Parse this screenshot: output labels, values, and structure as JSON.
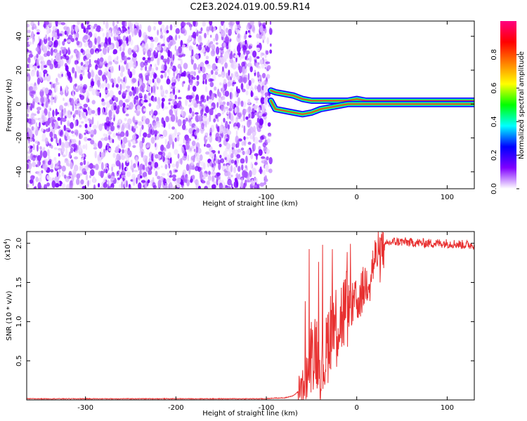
{
  "title": "C2E3.2024.019.00.59.R14",
  "chart_data": [
    {
      "type": "heatmap",
      "title": "C2E3.2024.019.00.59.R14",
      "xlabel": "Height of straight line (km)",
      "ylabel": "Frequency (Hz)",
      "xlim": [
        -365,
        130
      ],
      "ylim": [
        -50,
        49
      ],
      "x_ticks": [
        -300,
        -200,
        -100,
        0,
        100
      ],
      "y_ticks": [
        -40,
        -20,
        0,
        20,
        40
      ],
      "x_tick_labels": [
        "-300",
        "-200",
        "-100",
        "0",
        "100"
      ],
      "y_tick_labels": [
        "-40",
        "-20",
        "0",
        "20",
        "40"
      ],
      "noise_region_x": [
        -365,
        -95
      ],
      "ridge": {
        "x": [
          -95,
          -90,
          -80,
          -70,
          -60,
          -50,
          -40,
          -30,
          -20,
          -10,
          0,
          10,
          30,
          50,
          80,
          100,
          130
        ],
        "upper_hz": [
          8,
          7,
          6,
          5,
          3,
          2,
          2,
          2,
          2,
          2,
          3,
          2,
          2,
          2,
          2,
          2,
          2
        ],
        "lower_hz": [
          2,
          -3,
          -4,
          -5,
          -6,
          -5,
          -3,
          -2,
          -1,
          0,
          0,
          0,
          0,
          0,
          0,
          0,
          0
        ]
      },
      "colorbar": {
        "label": "Normalized spectral amplitude",
        "range": [
          0,
          1
        ],
        "ticks": [
          0.0,
          0.2,
          0.4,
          0.6,
          0.8
        ],
        "tick_labels": [
          "0.0",
          "0.2",
          "0.4",
          "0.6",
          "0.8"
        ],
        "colors": [
          "#ffffff",
          "#8000ff",
          "#0000ff",
          "#00ffff",
          "#00ff00",
          "#ffff00",
          "#ff8000",
          "#ff0000",
          "#ff0080"
        ]
      }
    },
    {
      "type": "line",
      "xlabel": "Height of straight line (km)",
      "ylabel": "SNR (10 * v/v)",
      "y_multiplier": "(x10",
      "y_multiplier_exp": "4",
      "y_multiplier_close": ")",
      "xlim": [
        -365,
        130
      ],
      "ylim": [
        0,
        2.15
      ],
      "x_ticks": [
        -300,
        -200,
        -100,
        0,
        100
      ],
      "y_ticks": [
        0.5,
        1.0,
        1.5,
        2.0
      ],
      "x_tick_labels": [
        "-300",
        "-200",
        "-100",
        "0",
        "100"
      ],
      "y_tick_labels": [
        "0.5",
        "1.0",
        "1.5",
        "2.0"
      ],
      "line_color": "#e83030",
      "series": [
        {
          "x": [
            -365,
            -300,
            -200,
            -110,
            -100,
            -90,
            -80,
            -70,
            -60,
            -55,
            -50,
            -45,
            -40,
            -35,
            -30,
            -25,
            -20,
            -15,
            -10,
            -5,
            0,
            5,
            10,
            15,
            20,
            25,
            30,
            35,
            40,
            50,
            60,
            80,
            100,
            120,
            130
          ],
          "values": [
            0.01,
            0.01,
            0.01,
            0.01,
            0.01,
            0.02,
            0.02,
            0.05,
            0.15,
            0.3,
            0.6,
            0.7,
            0.35,
            0.5,
            0.9,
            1.0,
            1.0,
            1.1,
            1.2,
            1.2,
            1.25,
            1.35,
            1.5,
            1.6,
            1.8,
            1.9,
            1.95,
            2.0,
            2.02,
            2.02,
            2.01,
            2.0,
            2.0,
            1.98,
            1.98
          ]
        }
      ]
    }
  ]
}
